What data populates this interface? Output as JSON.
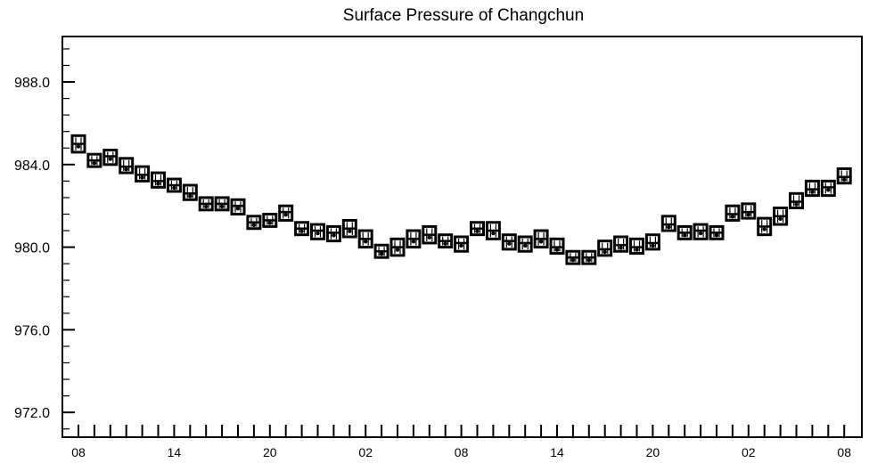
{
  "chart_data": {
    "type": "box",
    "title": "Surface Pressure of Changchun",
    "xlabel": "",
    "ylabel": "",
    "ylim": [
      970.8,
      990.2
    ],
    "yticks": [
      {
        "value": 972.0,
        "label": "972.0"
      },
      {
        "value": 976.0,
        "label": "976.0"
      },
      {
        "value": 980.0,
        "label": "980.0"
      },
      {
        "value": 984.0,
        "label": "984.0"
      },
      {
        "value": 988.0,
        "label": "988.0"
      }
    ],
    "x_tick_labels": [
      "08",
      "14",
      "20",
      "02",
      "08",
      "14",
      "20",
      "02",
      "08"
    ],
    "x_tick_label_step": 6,
    "grid": false,
    "median": [
      985.0,
      984.2,
      984.4,
      983.9,
      983.5,
      983.2,
      983.0,
      982.6,
      982.1,
      982.1,
      982.0,
      981.2,
      981.3,
      981.7,
      980.9,
      980.8,
      980.7,
      980.9,
      980.4,
      979.8,
      980.0,
      980.4,
      980.6,
      980.3,
      980.2,
      980.9,
      980.8,
      980.3,
      980.2,
      980.4,
      980.0,
      979.5,
      979.5,
      979.9,
      980.1,
      980.0,
      980.2,
      981.1,
      980.7,
      980.8,
      980.7,
      981.6,
      981.7,
      981.0,
      981.5,
      982.2,
      982.8,
      982.9,
      983.4
    ],
    "q1": [
      984.6,
      983.9,
      984.0,
      983.6,
      983.2,
      982.9,
      982.7,
      982.3,
      981.8,
      981.8,
      981.6,
      980.9,
      981.0,
      981.3,
      980.6,
      980.4,
      980.3,
      980.5,
      980.0,
      979.5,
      979.6,
      980.0,
      980.2,
      980.0,
      979.8,
      980.6,
      980.4,
      979.9,
      979.8,
      980.0,
      979.7,
      979.2,
      979.2,
      979.6,
      979.8,
      979.7,
      979.9,
      980.8,
      980.4,
      980.4,
      980.4,
      981.3,
      981.4,
      980.6,
      981.1,
      981.9,
      982.5,
      982.5,
      983.1
    ],
    "q3": [
      985.4,
      984.5,
      984.7,
      984.3,
      983.9,
      983.6,
      983.3,
      983.0,
      982.4,
      982.4,
      982.3,
      981.5,
      981.6,
      982.0,
      981.2,
      981.1,
      981.0,
      981.3,
      980.8,
      980.1,
      980.4,
      980.8,
      981.0,
      980.6,
      980.5,
      981.2,
      981.2,
      980.6,
      980.5,
      980.8,
      980.4,
      979.8,
      979.8,
      980.3,
      980.5,
      980.4,
      980.6,
      981.5,
      981.0,
      981.1,
      981.0,
      982.0,
      982.1,
      981.4,
      981.9,
      982.6,
      983.2,
      983.2,
      983.8
    ]
  }
}
